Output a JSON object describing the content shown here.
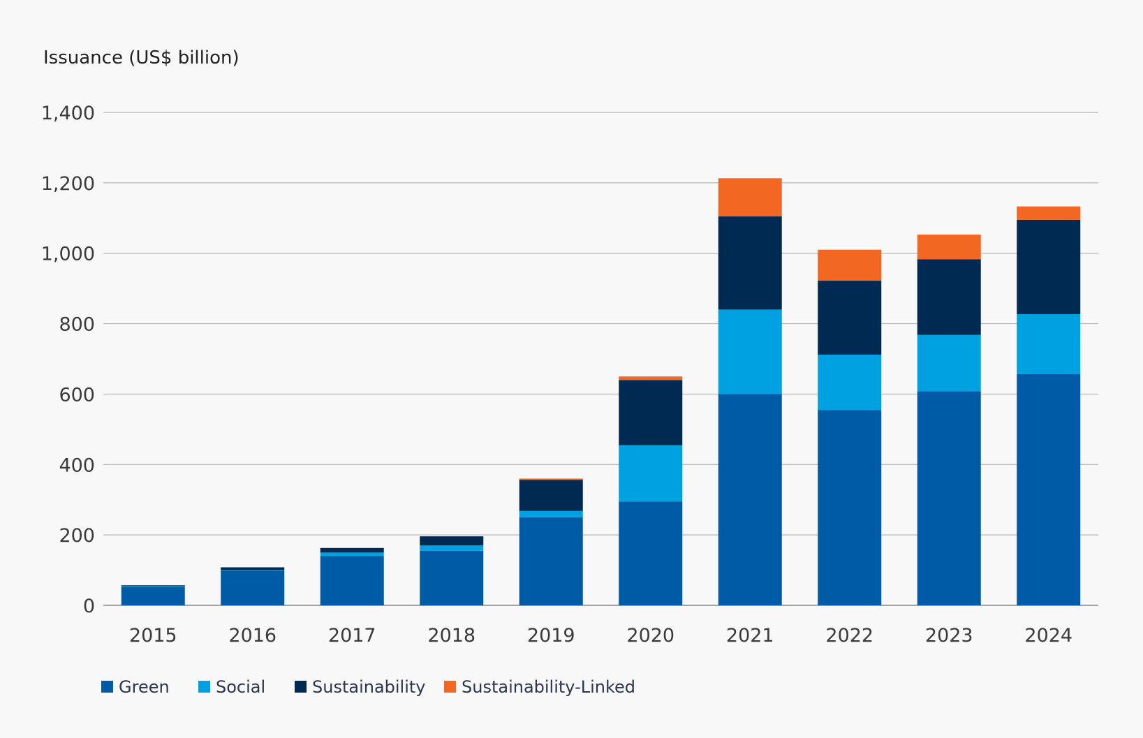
{
  "chart_data": {
    "type": "bar",
    "stacked": true,
    "ylabel": "Issuance (US$ billion)",
    "xlabel": "",
    "title": "",
    "ylim": [
      0,
      1400
    ],
    "yticks": [
      0,
      200,
      400,
      600,
      800,
      1000,
      1200,
      1400
    ],
    "ytick_labels": [
      "0",
      "200",
      "400",
      "600",
      "800",
      "1,000",
      "1,200",
      "1,400"
    ],
    "grid": true,
    "legend_position": "bottom-left",
    "categories": [
      "2015",
      "2016",
      "2017",
      "2018",
      "2019",
      "2020",
      "2021",
      "2022",
      "2023",
      "2024"
    ],
    "series": [
      {
        "name": "Green",
        "color": "#005ba6",
        "values": [
          52,
          98,
          140,
          155,
          250,
          295,
          600,
          555,
          608,
          657
        ]
      },
      {
        "name": "Social",
        "color": "#00a1e0",
        "values": [
          2,
          2,
          10,
          15,
          18,
          160,
          240,
          157,
          160,
          170
        ]
      },
      {
        "name": "Sustainability",
        "color": "#002a52",
        "values": [
          3,
          8,
          13,
          26,
          88,
          185,
          265,
          210,
          215,
          268
        ]
      },
      {
        "name": "Sustainability-Linked",
        "color": "#f26722",
        "values": [
          0,
          0,
          0,
          0,
          4,
          10,
          108,
          88,
          70,
          38
        ]
      }
    ]
  }
}
